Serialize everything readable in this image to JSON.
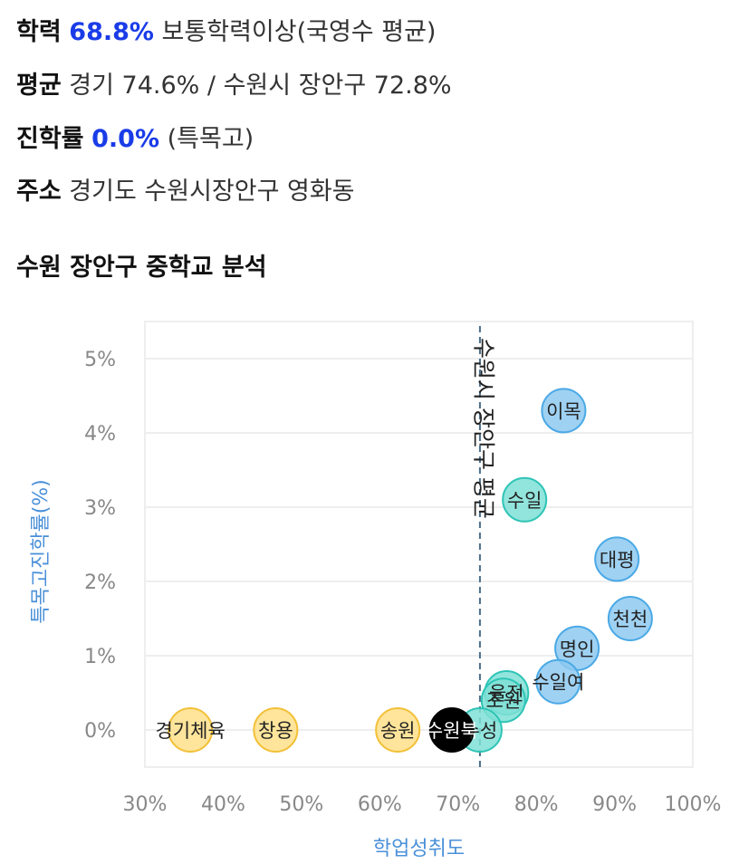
{
  "info": {
    "academic": {
      "label": "학력",
      "value": "68.8%",
      "suffix": "보통학력이상(국영수 평균)"
    },
    "average": {
      "label": "평균",
      "text": "경기 74.6% / 수원시 장안구 72.8%"
    },
    "advancement": {
      "label": "진학률",
      "value": "0.0%",
      "suffix": "(특목고)"
    },
    "address": {
      "label": "주소",
      "text": "경기도 수원시장안구 영화동"
    }
  },
  "section_title": "수원 장안구 중학교 분석",
  "colors": {
    "blue": "#8ec9f0",
    "blue_border": "#4aa9e6",
    "teal": "#7fe0d6",
    "teal_border": "#2ec4b6",
    "yellow": "#ffe08a",
    "yellow_border": "#f2c038",
    "black": "#000000",
    "axis_label": "#4a90d9",
    "tick": "#888888",
    "grid": "#eeeeee",
    "avg_line": "#4a6e8a"
  },
  "chart_data": {
    "type": "scatter",
    "xlabel": "학업성취도",
    "ylabel": "특목고진학률(%)",
    "xlim": [
      30,
      100
    ],
    "ylim": [
      -0.5,
      5.5
    ],
    "xticks": [
      "30%",
      "40%",
      "50%",
      "60%",
      "70%",
      "80%",
      "90%",
      "100%"
    ],
    "xtick_values": [
      30,
      40,
      50,
      60,
      70,
      80,
      90,
      100
    ],
    "yticks": [
      "0%",
      "1%",
      "2%",
      "3%",
      "4%",
      "5%"
    ],
    "ytick_values": [
      0,
      1,
      2,
      3,
      4,
      5
    ],
    "grid": true,
    "reference_line": {
      "x": 72.8,
      "label": "수원시 장안구 평균"
    },
    "points": [
      {
        "name": "이목",
        "x": 83.5,
        "y": 4.3,
        "color": "blue"
      },
      {
        "name": "수일",
        "x": 78.5,
        "y": 3.1,
        "color": "teal"
      },
      {
        "name": "대평",
        "x": 90.3,
        "y": 2.3,
        "color": "blue"
      },
      {
        "name": "천천",
        "x": 92.0,
        "y": 1.5,
        "color": "blue"
      },
      {
        "name": "명인",
        "x": 85.2,
        "y": 1.1,
        "color": "blue"
      },
      {
        "name": "수일여",
        "x": 82.8,
        "y": 0.65,
        "color": "blue"
      },
      {
        "name": "율전",
        "x": 76.2,
        "y": 0.5,
        "color": "teal"
      },
      {
        "name": "조원",
        "x": 75.8,
        "y": 0.4,
        "color": "teal"
      },
      {
        "name": "수성",
        "x": 72.8,
        "y": 0.0,
        "color": "teal"
      },
      {
        "name": "수원북",
        "x": 69.2,
        "y": 0.0,
        "color": "black"
      },
      {
        "name": "송원",
        "x": 62.3,
        "y": 0.0,
        "color": "yellow"
      },
      {
        "name": "창용",
        "x": 46.7,
        "y": 0.0,
        "color": "yellow"
      },
      {
        "name": "경기체육",
        "x": 35.8,
        "y": 0.0,
        "color": "yellow"
      }
    ]
  }
}
